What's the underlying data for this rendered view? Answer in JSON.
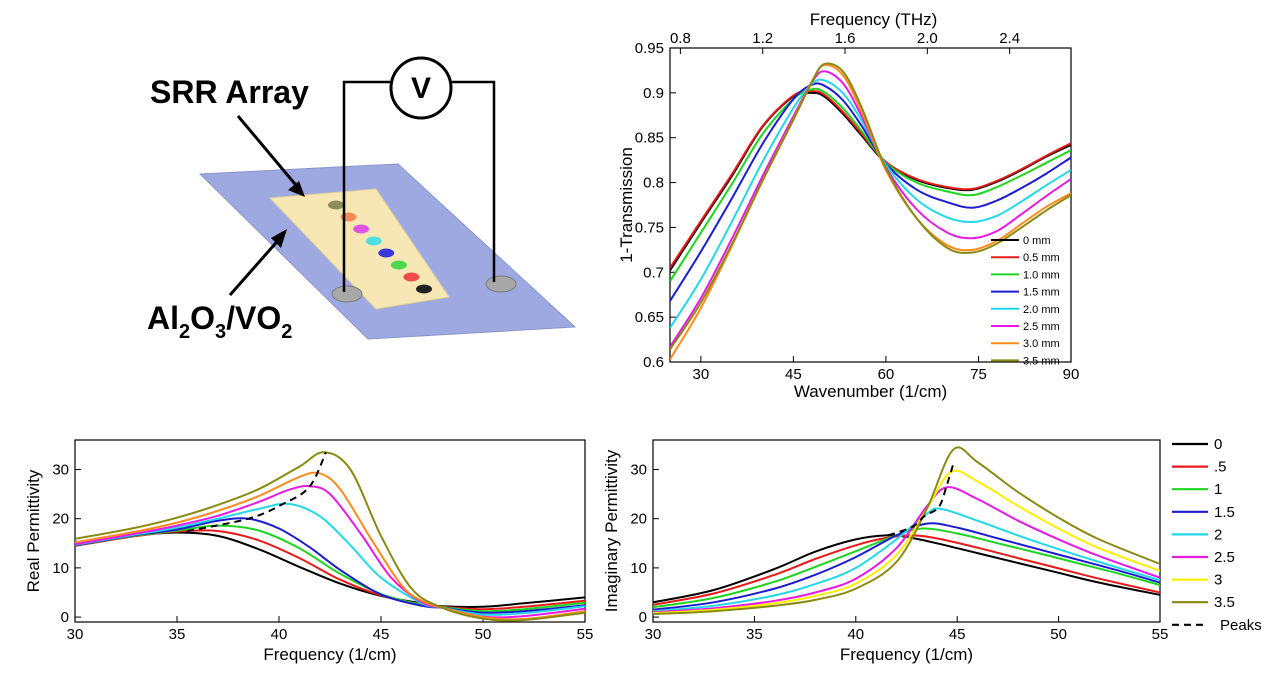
{
  "schematic": {
    "srr_label": "SRR Array",
    "substrate_label": "Al2O3/VO2",
    "substrate_parts": [
      "Al",
      "2",
      "O",
      "3",
      "/VO",
      "2"
    ],
    "voltmeter_label": "V",
    "dot_colors": [
      "#8d8d5a",
      "#f28b55",
      "#e052e0",
      "#4ee0e0",
      "#3a3ad8",
      "#4cd84c",
      "#f04a4a",
      "#222222"
    ]
  },
  "chart_data": [
    {
      "type": "line",
      "xlabel": "Wavenumber (1/cm)",
      "ylabel": "1-Transmission",
      "x2label": "Frequency (THz)",
      "xlim": [
        25,
        90
      ],
      "ylim": [
        0.6,
        0.95
      ],
      "x_ticks": [
        "30",
        "45",
        "60",
        "75",
        "90"
      ],
      "y_ticks": [
        "0.6",
        "0.65",
        "0.7",
        "0.75",
        "0.8",
        "0.85",
        "0.9",
        "0.95"
      ],
      "x2_ticks": [
        "0.8",
        "1.2",
        "1.6",
        "2.0",
        "2.4"
      ],
      "legend_position": "bottom-right",
      "series": [
        {
          "name": "0 mm",
          "color": "#000000",
          "x": [
            25,
            30,
            35,
            40,
            45,
            48,
            50,
            53,
            56,
            60,
            65,
            70,
            74,
            78,
            82,
            86,
            90
          ],
          "y": [
            0.702,
            0.755,
            0.807,
            0.862,
            0.896,
            0.9,
            0.896,
            0.877,
            0.853,
            0.822,
            0.803,
            0.794,
            0.792,
            0.801,
            0.814,
            0.829,
            0.842
          ]
        },
        {
          "name": "0.5 mm",
          "color": "#e81a1a",
          "x": [
            25,
            30,
            35,
            40,
            45,
            48,
            50,
            53,
            56,
            60,
            65,
            70,
            74,
            78,
            82,
            86,
            90
          ],
          "y": [
            0.705,
            0.757,
            0.809,
            0.863,
            0.897,
            0.902,
            0.898,
            0.879,
            0.855,
            0.823,
            0.804,
            0.795,
            0.793,
            0.802,
            0.815,
            0.83,
            0.844
          ]
        },
        {
          "name": "1.0 mm",
          "color": "#1ed41e",
          "x": [
            25,
            30,
            35,
            40,
            45,
            48,
            50,
            53,
            56,
            60,
            65,
            70,
            74,
            78,
            82,
            86,
            90
          ],
          "y": [
            0.69,
            0.744,
            0.798,
            0.854,
            0.893,
            0.904,
            0.901,
            0.883,
            0.858,
            0.822,
            0.8,
            0.79,
            0.786,
            0.795,
            0.808,
            0.822,
            0.836
          ]
        },
        {
          "name": "1.5 mm",
          "color": "#1c1cd0",
          "x": [
            25,
            30,
            35,
            40,
            45,
            48,
            50,
            53,
            56,
            60,
            65,
            70,
            74,
            78,
            82,
            86,
            90
          ],
          "y": [
            0.668,
            0.723,
            0.782,
            0.843,
            0.893,
            0.909,
            0.908,
            0.892,
            0.864,
            0.821,
            0.792,
            0.778,
            0.772,
            0.78,
            0.794,
            0.81,
            0.828
          ]
        },
        {
          "name": "2.0 mm",
          "color": "#22d8e8",
          "x": [
            25,
            30,
            35,
            40,
            45,
            48,
            50,
            53,
            56,
            60,
            65,
            70,
            74,
            78,
            82,
            86,
            90
          ],
          "y": [
            0.638,
            0.692,
            0.756,
            0.823,
            0.883,
            0.91,
            0.914,
            0.9,
            0.87,
            0.82,
            0.781,
            0.761,
            0.756,
            0.763,
            0.779,
            0.797,
            0.814
          ]
        },
        {
          "name": "2.5 mm",
          "color": "#e51ae5",
          "x": [
            25,
            30,
            35,
            40,
            45,
            48,
            50,
            53,
            56,
            60,
            65,
            70,
            74,
            78,
            82,
            86,
            90
          ],
          "y": [
            0.617,
            0.671,
            0.737,
            0.807,
            0.874,
            0.912,
            0.924,
            0.911,
            0.875,
            0.817,
            0.77,
            0.744,
            0.738,
            0.746,
            0.765,
            0.785,
            0.804
          ]
        },
        {
          "name": "3.0 mm",
          "color": "#ff8a1a",
          "x": [
            25,
            30,
            35,
            40,
            45,
            48,
            50,
            53,
            56,
            60,
            65,
            70,
            74,
            78,
            82,
            86,
            90
          ],
          "y": [
            0.603,
            0.66,
            0.729,
            0.802,
            0.871,
            0.913,
            0.931,
            0.92,
            0.88,
            0.814,
            0.76,
            0.73,
            0.725,
            0.735,
            0.754,
            0.773,
            0.788
          ]
        },
        {
          "name": "3.5 mm",
          "color": "#8a8a10",
          "x": [
            25,
            30,
            35,
            40,
            45,
            48,
            50,
            53,
            56,
            60,
            65,
            70,
            74,
            78,
            82,
            86,
            90
          ],
          "y": [
            0.614,
            0.666,
            0.731,
            0.802,
            0.87,
            0.912,
            0.932,
            0.924,
            0.885,
            0.816,
            0.76,
            0.727,
            0.722,
            0.732,
            0.75,
            0.769,
            0.786
          ]
        }
      ]
    },
    {
      "type": "line",
      "xlabel": "Frequency (1/cm)",
      "ylabel": "Real Permittivity",
      "xlim": [
        30,
        55
      ],
      "ylim": [
        -1,
        36
      ],
      "x_ticks": [
        "30",
        "35",
        "40",
        "45",
        "50",
        "55"
      ],
      "y_ticks": [
        "0",
        "10",
        "20",
        "30"
      ],
      "series": [
        {
          "color": "#000000",
          "x": [
            30,
            33,
            35,
            37,
            39,
            41,
            43,
            45,
            47,
            48,
            50,
            52,
            55
          ],
          "y": [
            14.5,
            16.5,
            17.2,
            16.5,
            13.8,
            10.2,
            6.8,
            4.3,
            2.8,
            2.2,
            2.1,
            2.8,
            4.0
          ]
        },
        {
          "color": "#e81a1a",
          "x": [
            30,
            33,
            35,
            37,
            39,
            41,
            43,
            45,
            47,
            48,
            50,
            52,
            55
          ],
          "y": [
            14.5,
            16.5,
            17.4,
            17.5,
            15.6,
            12.0,
            7.6,
            4.4,
            2.6,
            2.1,
            1.6,
            2.1,
            3.3
          ]
        },
        {
          "color": "#1ed41e",
          "x": [
            30,
            33,
            35,
            37,
            39,
            41,
            43,
            45,
            47,
            48,
            50,
            52,
            55
          ],
          "y": [
            14.6,
            16.6,
            17.6,
            18.6,
            17.6,
            14.0,
            8.8,
            4.7,
            2.5,
            2.0,
            1.2,
            1.6,
            2.9
          ]
        },
        {
          "color": "#1c1cd0",
          "x": [
            30,
            33,
            35,
            37,
            38.5,
            40,
            41.5,
            43,
            45,
            47,
            48,
            50,
            52,
            55
          ],
          "y": [
            14.6,
            16.7,
            17.8,
            19.6,
            20.0,
            18.0,
            14.2,
            9.6,
            4.6,
            2.3,
            1.9,
            0.9,
            1.2,
            2.4
          ]
        },
        {
          "color": "#22d8e8",
          "x": [
            30,
            33,
            35,
            37,
            39,
            40.5,
            42,
            43.5,
            45,
            47,
            48,
            50,
            52,
            55
          ],
          "y": [
            14.7,
            16.8,
            18.2,
            20.0,
            22.0,
            23.0,
            20.5,
            14.6,
            8.0,
            2.8,
            1.9,
            0.5,
            0.8,
            2.2
          ]
        },
        {
          "color": "#e51ae5",
          "x": [
            30,
            33,
            35,
            37,
            39,
            40.5,
            41.5,
            42.5,
            44,
            45.5,
            47,
            48,
            50,
            52,
            55
          ],
          "y": [
            14.8,
            17.0,
            18.6,
            20.6,
            23.4,
            25.9,
            26.6,
            25.0,
            17.0,
            8.0,
            3.0,
            1.9,
            0.1,
            0.2,
            1.7
          ]
        },
        {
          "color": "#ff8a1a",
          "x": [
            30,
            33,
            35,
            37,
            39,
            41,
            42,
            43,
            44.5,
            46,
            47,
            48,
            50,
            52,
            55
          ],
          "y": [
            15.2,
            17.4,
            19.2,
            21.6,
            24.6,
            28.5,
            29.2,
            26.0,
            16.0,
            6.5,
            3.3,
            1.9,
            0.0,
            -0.4,
            1.2
          ]
        },
        {
          "color": "#8a8a10",
          "x": [
            30,
            33,
            35,
            37,
            39,
            41,
            42.2,
            43.5,
            45,
            46.5,
            48,
            50,
            52,
            55
          ],
          "y": [
            15.9,
            18.2,
            20.2,
            22.8,
            26.0,
            30.6,
            33.5,
            30.0,
            16.5,
            5.8,
            1.9,
            -0.3,
            -0.6,
            0.9
          ]
        }
      ],
      "peaks": {
        "x": [
          35.5,
          38.5,
          40.2,
          41.5,
          42.3
        ],
        "y": [
          17.5,
          20.0,
          23.0,
          26.5,
          33.5
        ]
      }
    },
    {
      "type": "line",
      "xlabel": "Frequency (1/cm)",
      "ylabel": "Imaginary Permittivity",
      "xlim": [
        30,
        55
      ],
      "ylim": [
        -1,
        36
      ],
      "x_ticks": [
        "30",
        "35",
        "40",
        "45",
        "50",
        "55"
      ],
      "y_ticks": [
        "0",
        "10",
        "20",
        "30"
      ],
      "legend_position": "right",
      "legend_labels": [
        "0",
        ".5",
        "1",
        "1.5",
        "2",
        "2.5",
        "3",
        "3.5",
        "Peaks"
      ],
      "series": [
        {
          "name": "0",
          "color": "#000000",
          "x": [
            30,
            33,
            36,
            38,
            40,
            41.5,
            42.5,
            44,
            46,
            48,
            50,
            52,
            55
          ],
          "y": [
            3.0,
            5.5,
            9.8,
            13.3,
            15.8,
            16.6,
            16.3,
            15.0,
            13.0,
            11.0,
            9.0,
            7.0,
            4.5
          ]
        },
        {
          "name": ".5",
          "color": "#e81a1a",
          "x": [
            30,
            33,
            36,
            38,
            40,
            41.5,
            42.8,
            44,
            46,
            48,
            50,
            52,
            55
          ],
          "y": [
            2.5,
            4.8,
            8.6,
            11.8,
            14.6,
            16.1,
            16.6,
            16.0,
            14.1,
            12.0,
            9.9,
            7.8,
            5.0
          ]
        },
        {
          "name": "1",
          "color": "#1ed41e",
          "x": [
            30,
            33,
            36,
            38,
            40,
            42,
            43.3,
            45,
            47,
            49,
            51,
            53,
            55
          ],
          "y": [
            2.0,
            3.9,
            7.2,
            10.2,
            13.4,
            16.6,
            18.0,
            17.0,
            15.0,
            13.0,
            10.9,
            8.8,
            6.5
          ]
        },
        {
          "name": "1.5",
          "color": "#1c1cd0",
          "x": [
            30,
            33,
            36,
            38,
            40,
            42,
            43.5,
            45,
            47,
            49,
            51,
            53,
            55
          ],
          "y": [
            1.5,
            3.0,
            5.8,
            8.6,
            12.2,
            16.6,
            19.0,
            18.2,
            16.0,
            13.8,
            11.6,
            9.4,
            7.0
          ]
        },
        {
          "name": "2",
          "color": "#22d8e8",
          "x": [
            30,
            33,
            36,
            38,
            40,
            42,
            43.5,
            44.2,
            46,
            48,
            50,
            52,
            55
          ],
          "y": [
            1.2,
            2.3,
            4.4,
            6.7,
            10.0,
            15.8,
            21.0,
            22.0,
            19.6,
            16.6,
            13.8,
            11.2,
            7.5
          ]
        },
        {
          "name": "2.5",
          "color": "#e51ae5",
          "x": [
            30,
            33,
            36,
            38,
            40,
            42,
            43.5,
            44.5,
            46,
            48,
            50,
            52,
            55
          ],
          "y": [
            1.0,
            1.8,
            3.3,
            5.0,
            7.8,
            14.0,
            22.5,
            26.4,
            24.0,
            19.6,
            15.8,
            12.4,
            8.0
          ]
        },
        {
          "name": "3",
          "color": "#ffee00",
          "x": [
            30,
            33,
            36,
            38,
            40,
            42,
            43.5,
            44.7,
            46,
            48,
            50,
            52,
            55
          ],
          "y": [
            0.8,
            1.5,
            2.8,
            4.3,
            6.8,
            12.6,
            22.0,
            29.5,
            27.6,
            22.6,
            18.0,
            14.0,
            9.4
          ]
        },
        {
          "name": "3.5",
          "color": "#8a8a10",
          "x": [
            30,
            33,
            36,
            38,
            40,
            42,
            43.5,
            44.8,
            46,
            48,
            50,
            52,
            55
          ],
          "y": [
            0.6,
            1.2,
            2.3,
            3.5,
            5.8,
            11.2,
            22.0,
            34.0,
            31.5,
            25.4,
            20.2,
            15.8,
            10.8
          ]
        }
      ],
      "peaks": {
        "x": [
          41.6,
          42.8,
          43.4,
          44.1,
          44.5,
          44.8
        ],
        "y": [
          16.6,
          18.4,
          20.6,
          22.4,
          27.0,
          31.0
        ]
      }
    }
  ]
}
